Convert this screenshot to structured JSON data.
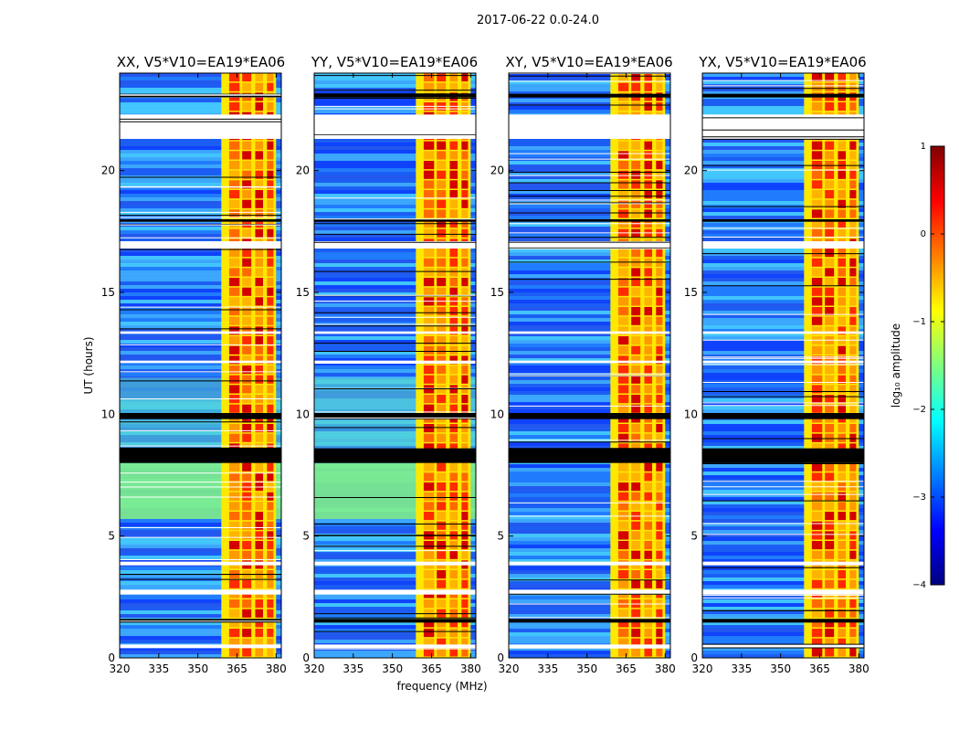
{
  "chart_data": {
    "type": "heatmap",
    "title": "2017-06-22 0.0-24.0",
    "xlabel": "frequency (MHz)",
    "ylabel": "UT (hours)",
    "xlim": [
      320,
      382
    ],
    "ylim": [
      0,
      24
    ],
    "xticks": [
      "320",
      "335",
      "350",
      "365",
      "380"
    ],
    "yticks": [
      "0",
      "5",
      "10",
      "15",
      "20"
    ],
    "colorbar": {
      "label": "log₁₀ amplitude",
      "range": [
        -4,
        1
      ],
      "ticks": [
        "1",
        "0",
        "−1",
        "−2",
        "−3",
        "−4"
      ]
    },
    "colormap": [
      "#00007f",
      "#0000ff",
      "#007fff",
      "#00ffff",
      "#7fff7f",
      "#ffff00",
      "#ff7f00",
      "#ff0000",
      "#7f0000"
    ],
    "panels": [
      {
        "title": "XX, V5*V10=EA19*EA06"
      },
      {
        "title": "YY, V5*V10=EA19*EA06"
      },
      {
        "title": "XY, V5*V10=EA19*EA06"
      },
      {
        "title": "YX, V5*V10=EA19*EA06"
      }
    ],
    "rfi_band_mhz": [
      359,
      380
    ],
    "flagged_hours_blank": [
      [
        0.4,
        0.55
      ],
      [
        2.6,
        2.8
      ],
      [
        3.8,
        3.95
      ],
      [
        12.1,
        12.2
      ],
      [
        13.3,
        13.4
      ],
      [
        16.8,
        17.1
      ],
      [
        21.3,
        22.3
      ]
    ],
    "flagged_hours_black": [
      [
        1.45,
        1.6
      ],
      [
        8.0,
        8.6
      ],
      [
        9.8,
        10.05
      ],
      [
        17.9,
        18.0
      ],
      [
        23.0,
        23.15
      ]
    ]
  }
}
